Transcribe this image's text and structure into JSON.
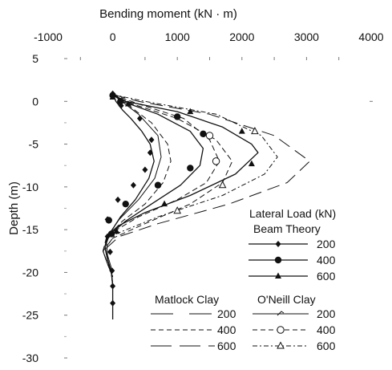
{
  "chart_data": {
    "type": "line",
    "xlabel": "Bending moment (kN · m)",
    "ylabel": "Depth (m)",
    "xlim": [
      -1000,
      4000
    ],
    "ylim": [
      -30,
      5
    ],
    "x_ticks": [
      "-1000",
      "0",
      "1000",
      "2000",
      "3000",
      "4000"
    ],
    "y_ticks": [
      "5",
      "0",
      "-5",
      "-10",
      "-15",
      "-20",
      "-25",
      "-30"
    ],
    "grid": false,
    "legend": {
      "title": "Lateral Load (kN)",
      "groups": [
        {
          "name": "Beam Theory",
          "entries": [
            "200",
            "400",
            "600"
          ]
        },
        {
          "name": "Matlock Clay",
          "entries": [
            "200",
            "400",
            "600"
          ]
        },
        {
          "name": "O'Neill Clay",
          "entries": [
            "200",
            "400",
            "600"
          ]
        }
      ]
    },
    "series": [
      {
        "method": "Beam Theory",
        "load": "200",
        "style": "solid",
        "marker": "diamond",
        "x": [
          0,
          50,
          150,
          280,
          450,
          580,
          640,
          560,
          350,
          120,
          -50,
          -120,
          -80,
          -20,
          0,
          0,
          0,
          0
        ],
        "y": [
          0.8,
          0,
          -1,
          -2,
          -3.5,
          -5,
          -7,
          -9,
          -11.5,
          -13.5,
          -15.5,
          -17,
          -18.5,
          -20,
          -21.5,
          -23.5,
          -25,
          -25.5
        ],
        "markers_x": [
          0,
          130,
          420,
          600,
          580,
          500,
          320,
          80,
          -80,
          -80,
          -40,
          -10,
          0,
          0
        ],
        "markers_y": [
          0.9,
          -0.5,
          -2,
          -4.5,
          -6,
          -8,
          -9.8,
          -11.5,
          -13.8,
          -15.8,
          -17.6,
          -19.8,
          -21.6,
          -23.6
        ]
      },
      {
        "method": "Beam Theory",
        "load": "400",
        "style": "solid",
        "marker": "circle",
        "x": [
          0,
          150,
          700,
          1200,
          1400,
          1350,
          1050,
          600,
          200,
          -50,
          -120,
          -80,
          -20,
          0
        ],
        "y": [
          0.8,
          0,
          -1.5,
          -3.5,
          -5.5,
          -7.5,
          -9.8,
          -12,
          -14,
          -15.6,
          -17,
          -18.5,
          -20,
          -21.5
        ],
        "markers_x": [
          0,
          120,
          1000,
          1400,
          1200,
          700,
          200,
          -60,
          -20
        ],
        "markers_y": [
          0.7,
          0,
          -1.8,
          -3.8,
          -7.8,
          -9.8,
          -12,
          -13.9,
          -15.5
        ]
      },
      {
        "method": "Beam Theory",
        "load": "600",
        "style": "solid",
        "marker": "triangle",
        "x": [
          0,
          200,
          1000,
          1700,
          2150,
          2250,
          1900,
          1200,
          500,
          100,
          -80,
          -120,
          -80,
          -20,
          0
        ],
        "y": [
          0.8,
          0,
          -1.2,
          -3,
          -5,
          -6,
          -8.5,
          -11,
          -13,
          -14.5,
          -15.6,
          -17,
          -18.5,
          -20,
          -21.5
        ],
        "markers_x": [
          0,
          240,
          1200,
          2000,
          2150,
          800,
          60
        ],
        "markers_y": [
          0.5,
          -0.3,
          -1.2,
          -3.5,
          -7.3,
          -12,
          -15.2
        ]
      },
      {
        "method": "Matlock Clay",
        "load": "200",
        "style": "dash",
        "marker": "none",
        "x": [
          0,
          250,
          600,
          850,
          900,
          780,
          500,
          150,
          -100,
          -150,
          -80,
          0
        ],
        "y": [
          0.8,
          -0.5,
          -2.5,
          -5,
          -7,
          -9.5,
          -12,
          -14,
          -16,
          -17.5,
          -19,
          -20.5
        ]
      },
      {
        "method": "Matlock Clay",
        "load": "400",
        "style": "dash",
        "marker": "none",
        "x": [
          0,
          300,
          1000,
          1600,
          1850,
          1700,
          1200,
          500,
          0,
          -150,
          -80,
          0
        ],
        "y": [
          0.8,
          -0.3,
          -2,
          -4.5,
          -7,
          -9.5,
          -12,
          -14.3,
          -16,
          -17.5,
          -19,
          -20.5
        ]
      },
      {
        "method": "Matlock Clay",
        "load": "600",
        "style": "longdash",
        "marker": "none",
        "x": [
          0,
          400,
          1500,
          2500,
          3050,
          2700,
          1800,
          700,
          100,
          -150,
          -80,
          0
        ],
        "y": [
          0.8,
          0,
          -1.5,
          -4,
          -7,
          -9.5,
          -12,
          -14.3,
          -15.8,
          -17.5,
          -19,
          -20.5
        ]
      },
      {
        "method": "O'Neill Clay",
        "load": "200",
        "style": "solid",
        "marker": "none",
        "x": [
          0,
          400,
          700,
          750,
          650,
          400,
          100,
          -100,
          -80,
          0
        ],
        "y": [
          0.8,
          -1.5,
          -4,
          -6.5,
          -9,
          -11.5,
          -13.8,
          -16,
          -18,
          -20
        ]
      },
      {
        "method": "O'Neill Clay",
        "load": "400",
        "style": "dash",
        "marker": "circle-open",
        "x": [
          0,
          400,
          1100,
          1500,
          1650,
          1450,
          1000,
          400,
          -50,
          -150,
          -80,
          0
        ],
        "y": [
          0.8,
          -0.3,
          -2,
          -4.5,
          -7,
          -9.5,
          -11.5,
          -13.5,
          -15.5,
          -17.5,
          -19,
          -20.5
        ],
        "markers_x": [
          1500,
          1600
        ],
        "markers_y": [
          -4,
          -7
        ]
      },
      {
        "method": "O'Neill Clay",
        "load": "600",
        "style": "dashdot",
        "marker": "triangle-open",
        "x": [
          0,
          500,
          1600,
          2300,
          2550,
          2350,
          1700,
          700,
          50,
          -150,
          -80,
          0
        ],
        "y": [
          0.8,
          0,
          -1.5,
          -4,
          -6.5,
          -8.5,
          -11,
          -13.5,
          -15.5,
          -17.5,
          -19,
          -20.5
        ],
        "markers_x": [
          2200,
          1700,
          1000
        ],
        "markers_y": [
          -3.5,
          -9.8,
          -12.8
        ]
      }
    ]
  }
}
